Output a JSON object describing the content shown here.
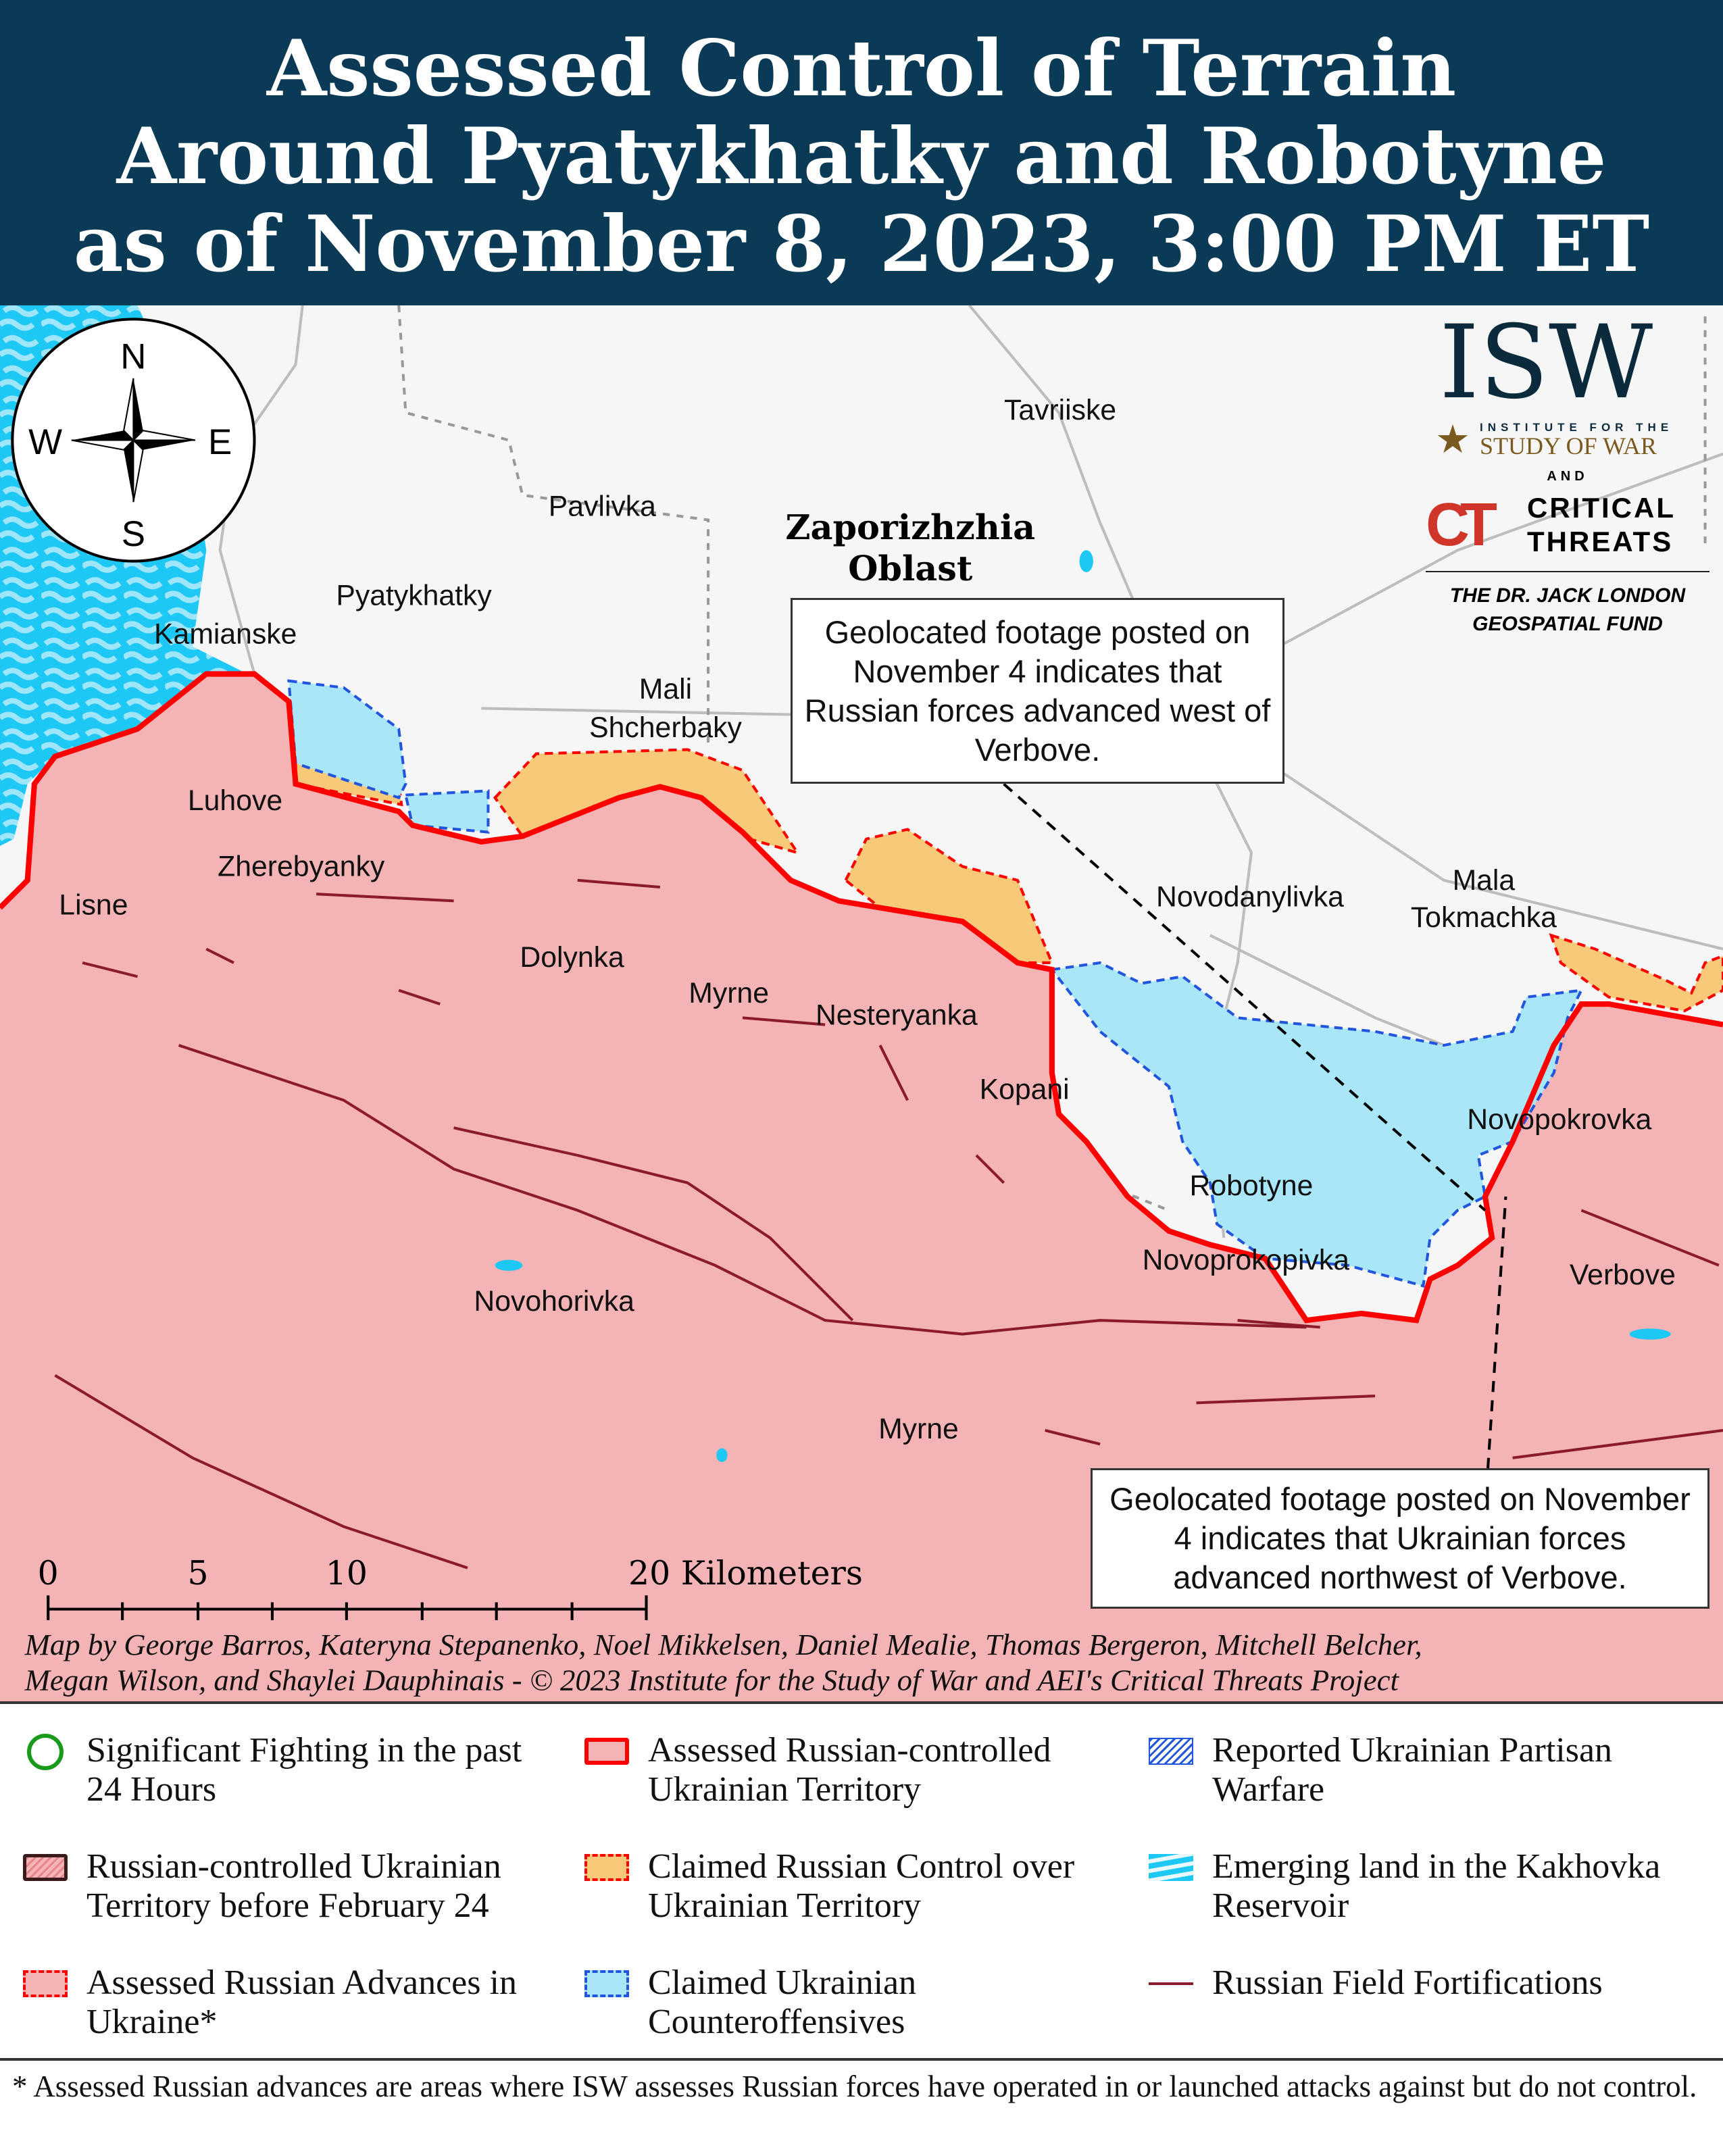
{
  "header": {
    "title_lines": [
      "Assessed Control of Terrain",
      "Around Pyatykhatky and Robotyne",
      "as of November 8, 2023, 3:00 PM ET"
    ]
  },
  "logo": {
    "isw": "ISW",
    "isw_sub1": "INSTITUTE FOR THE",
    "isw_sub2": "STUDY OF WAR",
    "and": "AND",
    "ct1": "CRITICAL",
    "ct2": "THREATS",
    "fund1": "THE DR. JACK LONDON",
    "fund2": "GEOSPATIAL FUND"
  },
  "compass": {
    "n": "N",
    "s": "S",
    "e": "E",
    "w": "W"
  },
  "map": {
    "oblast": [
      "Zaporizhzhia",
      "Oblast"
    ],
    "places": {
      "tavriiske": "Tavriiske",
      "pavlivka": "Pavlivka",
      "pyatykhatky": "Pyatykhatky",
      "kamianske": "Kamianske",
      "mali": "Mali",
      "shcherbaky": "Shcherbaky",
      "luhove": "Luhove",
      "zherebyanky": "Zherebyanky",
      "lisne": "Lisne",
      "dolynka": "Dolynka",
      "myrne1": "Myrne",
      "nesteryanka": "Nesteryanka",
      "kopani": "Kopani",
      "novodanylivka": "Novodanylivka",
      "mala": "Mala",
      "tokmachka": "Tokmachka",
      "novopokrovka": "Novopokrovka",
      "robotyne": "Robotyne",
      "novoprokopivka": "Novoprokopivka",
      "verbove": "Verbove",
      "novohorivka": "Novohorivka",
      "myrne2": "Myrne"
    },
    "callout1": "Geolocated footage posted on November 4 indicates that Russian forces advanced west of Verbove.",
    "callout2": "Geolocated footage posted on November 4 indicates that Ukrainian forces advanced northwest of Verbove.",
    "scale": {
      "t0": "0",
      "t5": "5",
      "t10": "10",
      "t20": "20 Kilometers"
    },
    "credit1": "Map by George Barros, Kateryna Stepanenko, Noel Mikkelsen, Daniel Mealie, Thomas Bergeron, Mitchell Belcher,",
    "credit2": "Megan Wilson, and Shaylei Dauphinais - © 2023 Institute for the Study of War and AEI's Critical Threats Project"
  },
  "colors": {
    "russian": "#f4b3b5",
    "border": "#ff0000",
    "claimed_russian": "#f9c97a",
    "ukr_counter": "#a8e6f8",
    "reservoir": "#1ec8f5",
    "fortification": "#8b1a2b",
    "header": "#0b3a57"
  },
  "legend": [
    {
      "label": "Significant Fighting in the past 24 Hours",
      "icon": "green-circle"
    },
    {
      "label": "Assessed Russian-controlled Ukrainian Territory",
      "icon": "red-outline-pink"
    },
    {
      "label": "Reported Ukrainian Partisan Warfare",
      "icon": "blue-hatch"
    },
    {
      "label": "Russian-controlled Ukrainian Territory before February 24",
      "icon": "dark-hatch"
    },
    {
      "label": "Claimed Russian Control over Ukrainian Territory",
      "icon": "orange-dashed"
    },
    {
      "label": "Emerging land in the Kakhovka Reservoir",
      "icon": "blue-texture"
    },
    {
      "label": "Assessed Russian Advances in Ukraine*",
      "icon": "red-dashed"
    },
    {
      "label": "Claimed Ukrainian Counteroffensives",
      "icon": "blue-dashed"
    },
    {
      "label": "Russian Field Fortifications",
      "icon": "dark-red-line"
    }
  ],
  "footnote": "* Assessed Russian advances are areas where ISW assesses Russian forces have operated in or launched attacks against but do not control."
}
